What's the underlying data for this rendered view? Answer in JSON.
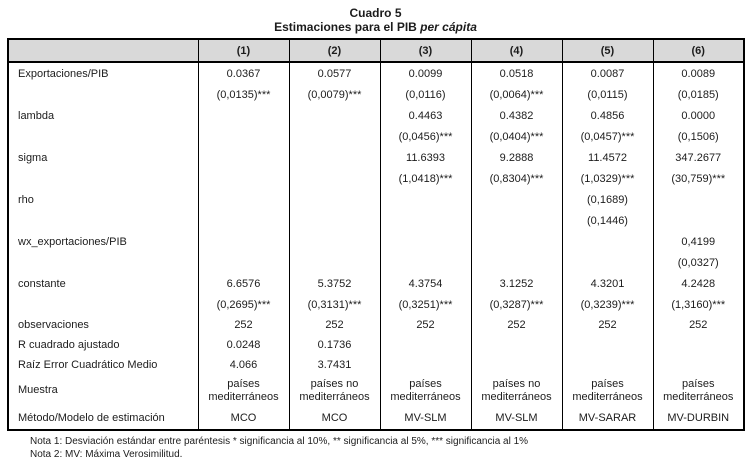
{
  "title": {
    "line1": "Cuadro 5",
    "line2_prefix": "Estimaciones para el PIB ",
    "line2_italic": "per cápita"
  },
  "table": {
    "header_fill_color": "#d9d9d9",
    "border_color": "#000000",
    "column_headers": [
      "",
      "(1)",
      "(2)",
      "(3)",
      "(4)",
      "(5)",
      "(6)"
    ],
    "rows": [
      {
        "label": "Exportaciones/PIB",
        "cells": [
          "0.0367",
          "0.0577",
          "0.0099",
          "0.0518",
          "0.0087",
          "0.0089"
        ]
      },
      {
        "label": "",
        "cells": [
          "(0,0135)***",
          "(0,0079)***",
          "(0,0116)",
          "(0,0064)***",
          "(0,0115)",
          "(0,0185)"
        ]
      },
      {
        "label": "lambda",
        "cells": [
          "",
          "",
          "0.4463",
          "0.4382",
          "0.4856",
          "0.0000"
        ]
      },
      {
        "label": "",
        "cells": [
          "",
          "",
          "(0,0456)***",
          "(0,0404)***",
          "(0,0457)***",
          "(0,1506)"
        ]
      },
      {
        "label": "sigma",
        "cells": [
          "",
          "",
          "11.6393",
          "9.2888",
          "11.4572",
          "347.2677"
        ]
      },
      {
        "label": "",
        "cells": [
          "",
          "",
          "(1,0418)***",
          "(0,8304)***",
          "(1,0329)***",
          "(30,759)***"
        ]
      },
      {
        "label": "rho",
        "cells": [
          "",
          "",
          "",
          "",
          "(0,1689)",
          ""
        ]
      },
      {
        "label": "",
        "cells": [
          "",
          "",
          "",
          "",
          "(0,1446)",
          ""
        ]
      },
      {
        "label": "wx_exportaciones/PIB",
        "cells": [
          "",
          "",
          "",
          "",
          "",
          "0,4199"
        ]
      },
      {
        "label": "",
        "cells": [
          "",
          "",
          "",
          "",
          "",
          "(0,0327)"
        ]
      },
      {
        "label": "constante",
        "cells": [
          "6.6576",
          "5.3752",
          "4.3754",
          "3.1252",
          "4.3201",
          "4.2428"
        ]
      },
      {
        "label": "",
        "cells": [
          "(0,2695)***",
          "(0,3131)***",
          "(0,3251)***",
          "(0,3287)***",
          "(0,3239)***",
          "(1,3160)***"
        ]
      },
      {
        "label": "observaciones",
        "cells": [
          "252",
          "252",
          "252",
          "252",
          "252",
          "252"
        ]
      },
      {
        "label": "R cuadrado ajustado",
        "cells": [
          "0.0248",
          "0.1736",
          "",
          "",
          "",
          ""
        ]
      },
      {
        "label": "Raíz Error Cuadrático Medio",
        "cells": [
          "4.066",
          "3.7431",
          "",
          "",
          "",
          ""
        ]
      },
      {
        "label": "Muestra",
        "cells": [
          "países mediterráneos",
          "países no mediterráneos",
          "países mediterráneos",
          "países no mediterráneos",
          "países mediterráneos",
          "países mediterráneos"
        ]
      },
      {
        "label": "Método/Modelo de estimación",
        "cells": [
          "MCO",
          "MCO",
          "MV-SLM",
          "MV-SLM",
          "MV-SARAR",
          "MV-DURBIN"
        ]
      }
    ]
  },
  "notes": {
    "note1": "Nota 1: Desviación estándar entre paréntesis * significancia al 10%, ** significancia al 5%, *** significancia al 1%",
    "note2": "Nota 2: MV: Máxima Verosimilitud."
  }
}
